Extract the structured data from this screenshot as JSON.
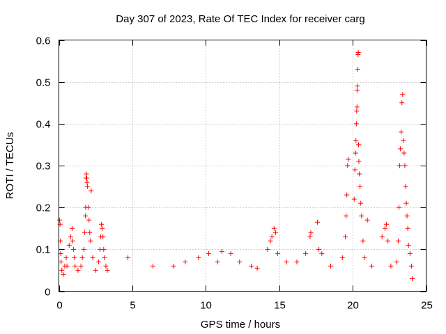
{
  "chart_data": {
    "type": "scatter",
    "title": "Day 307 of 2023, Rate Of TEC Index for receiver carg",
    "xlabel": "GPS time / hours",
    "ylabel": "ROTI / TECUs",
    "xlim": [
      0,
      25
    ],
    "ylim": [
      0,
      0.6
    ],
    "xticks": [
      0,
      5,
      10,
      15,
      20,
      25
    ],
    "yticks": [
      0,
      0.1,
      0.2,
      0.3,
      0.4,
      0.5,
      0.6
    ],
    "xtick_labels": [
      "0",
      "5",
      "10",
      "15",
      "20",
      "25"
    ],
    "ytick_labels": [
      "0",
      "0.1",
      "0.2",
      "0.3",
      "0.4",
      "0.5",
      "0.6"
    ],
    "grid": true,
    "marker": "+",
    "color": "#ff0000",
    "series": [
      {
        "points": [
          [
            0.05,
            0.17
          ],
          [
            0.08,
            0.16
          ],
          [
            0.1,
            0.12
          ],
          [
            0.12,
            0.09
          ],
          [
            0.15,
            0.07
          ],
          [
            0.2,
            0.05
          ],
          [
            0.3,
            0.04
          ],
          [
            0.4,
            0.06
          ],
          [
            0.5,
            0.08
          ],
          [
            0.55,
            0.06
          ],
          [
            0.7,
            0.11
          ],
          [
            0.8,
            0.13
          ],
          [
            0.9,
            0.15
          ],
          [
            0.95,
            0.12
          ],
          [
            1.0,
            0.1
          ],
          [
            1.05,
            0.08
          ],
          [
            1.1,
            0.06
          ],
          [
            1.3,
            0.05
          ],
          [
            1.5,
            0.06
          ],
          [
            1.6,
            0.08
          ],
          [
            1.7,
            0.1
          ],
          [
            1.75,
            0.14
          ],
          [
            1.8,
            0.18
          ],
          [
            1.82,
            0.2
          ],
          [
            1.85,
            0.27
          ],
          [
            1.87,
            0.28
          ],
          [
            1.9,
            0.27
          ],
          [
            1.92,
            0.26
          ],
          [
            1.95,
            0.25
          ],
          [
            2.0,
            0.2
          ],
          [
            2.05,
            0.17
          ],
          [
            2.1,
            0.14
          ],
          [
            2.15,
            0.12
          ],
          [
            2.2,
            0.24
          ],
          [
            2.3,
            0.08
          ],
          [
            2.5,
            0.05
          ],
          [
            2.7,
            0.07
          ],
          [
            2.8,
            0.1
          ],
          [
            2.85,
            0.13
          ],
          [
            2.9,
            0.16
          ],
          [
            2.95,
            0.15
          ],
          [
            3.0,
            0.13
          ],
          [
            3.05,
            0.1
          ],
          [
            3.1,
            0.08
          ],
          [
            3.2,
            0.06
          ],
          [
            3.3,
            0.05
          ],
          [
            4.7,
            0.08
          ],
          [
            6.4,
            0.06
          ],
          [
            7.8,
            0.06
          ],
          [
            8.6,
            0.07
          ],
          [
            9.5,
            0.08
          ],
          [
            10.2,
            0.09
          ],
          [
            10.8,
            0.07
          ],
          [
            11.1,
            0.095
          ],
          [
            11.7,
            0.09
          ],
          [
            12.3,
            0.07
          ],
          [
            13.1,
            0.06
          ],
          [
            13.5,
            0.055
          ],
          [
            14.2,
            0.1
          ],
          [
            14.4,
            0.12
          ],
          [
            14.5,
            0.13
          ],
          [
            14.65,
            0.15
          ],
          [
            14.75,
            0.14
          ],
          [
            14.9,
            0.09
          ],
          [
            15.5,
            0.07
          ],
          [
            16.2,
            0.07
          ],
          [
            16.8,
            0.09
          ],
          [
            17.1,
            0.13
          ],
          [
            17.15,
            0.14
          ],
          [
            17.6,
            0.165
          ],
          [
            17.7,
            0.1
          ],
          [
            17.9,
            0.09
          ],
          [
            18.5,
            0.06
          ],
          [
            19.3,
            0.08
          ],
          [
            19.5,
            0.13
          ],
          [
            19.55,
            0.18
          ],
          [
            19.6,
            0.23
          ],
          [
            19.65,
            0.3
          ],
          [
            19.7,
            0.315
          ],
          [
            20.1,
            0.22
          ],
          [
            20.15,
            0.29
          ],
          [
            20.2,
            0.33
          ],
          [
            20.22,
            0.36
          ],
          [
            20.25,
            0.4
          ],
          [
            20.27,
            0.43
          ],
          [
            20.29,
            0.44
          ],
          [
            20.3,
            0.48
          ],
          [
            20.32,
            0.49
          ],
          [
            20.34,
            0.53
          ],
          [
            20.36,
            0.565
          ],
          [
            20.38,
            0.57
          ],
          [
            20.4,
            0.35
          ],
          [
            20.42,
            0.31
          ],
          [
            20.45,
            0.28
          ],
          [
            20.5,
            0.25
          ],
          [
            20.55,
            0.21
          ],
          [
            20.6,
            0.18
          ],
          [
            20.7,
            0.12
          ],
          [
            20.8,
            0.08
          ],
          [
            21.0,
            0.17
          ],
          [
            21.3,
            0.06
          ],
          [
            22.0,
            0.13
          ],
          [
            22.2,
            0.15
          ],
          [
            22.3,
            0.16
          ],
          [
            22.4,
            0.12
          ],
          [
            22.6,
            0.06
          ],
          [
            23.0,
            0.07
          ],
          [
            23.1,
            0.12
          ],
          [
            23.15,
            0.2
          ],
          [
            23.2,
            0.3
          ],
          [
            23.25,
            0.34
          ],
          [
            23.3,
            0.38
          ],
          [
            23.35,
            0.45
          ],
          [
            23.4,
            0.47
          ],
          [
            23.45,
            0.36
          ],
          [
            23.5,
            0.33
          ],
          [
            23.55,
            0.3
          ],
          [
            23.6,
            0.25
          ],
          [
            23.65,
            0.21
          ],
          [
            23.7,
            0.18
          ],
          [
            23.75,
            0.15
          ],
          [
            23.8,
            0.11
          ],
          [
            23.9,
            0.09
          ],
          [
            24.0,
            0.06
          ],
          [
            24.05,
            0.03
          ]
        ]
      }
    ]
  }
}
